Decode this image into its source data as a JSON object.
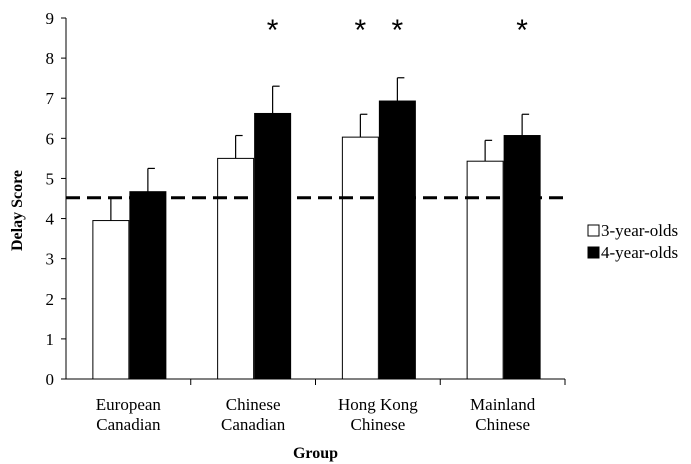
{
  "chart_data": {
    "type": "bar",
    "title": "",
    "xlabel": "Group",
    "ylabel": "Delay Score",
    "ylim": [
      0,
      9
    ],
    "yticks": [
      "0",
      "1",
      "2",
      "3",
      "4",
      "5",
      "6",
      "7",
      "8",
      "9"
    ],
    "categories": [
      [
        "European",
        "Canadian"
      ],
      [
        "Chinese",
        "Canadian"
      ],
      [
        "Hong Kong",
        "Chinese"
      ],
      [
        "Mainland",
        "Chinese"
      ]
    ],
    "series": [
      {
        "name": "3-year-olds",
        "color": "#ffffff",
        "values": [
          3.95,
          5.5,
          6.03,
          5.43
        ],
        "error": [
          0.57,
          0.57,
          0.57,
          0.52
        ],
        "significant": [
          false,
          false,
          true,
          false
        ]
      },
      {
        "name": "4-year-olds",
        "color": "#000000",
        "values": [
          4.67,
          6.62,
          6.93,
          6.07
        ],
        "error": [
          0.58,
          0.68,
          0.58,
          0.53
        ],
        "significant": [
          false,
          true,
          true,
          true
        ]
      }
    ],
    "reference_line": {
      "value": 4.52,
      "style": "dashed"
    },
    "significance_symbol": "*",
    "legend_position": "right",
    "grid": false
  }
}
